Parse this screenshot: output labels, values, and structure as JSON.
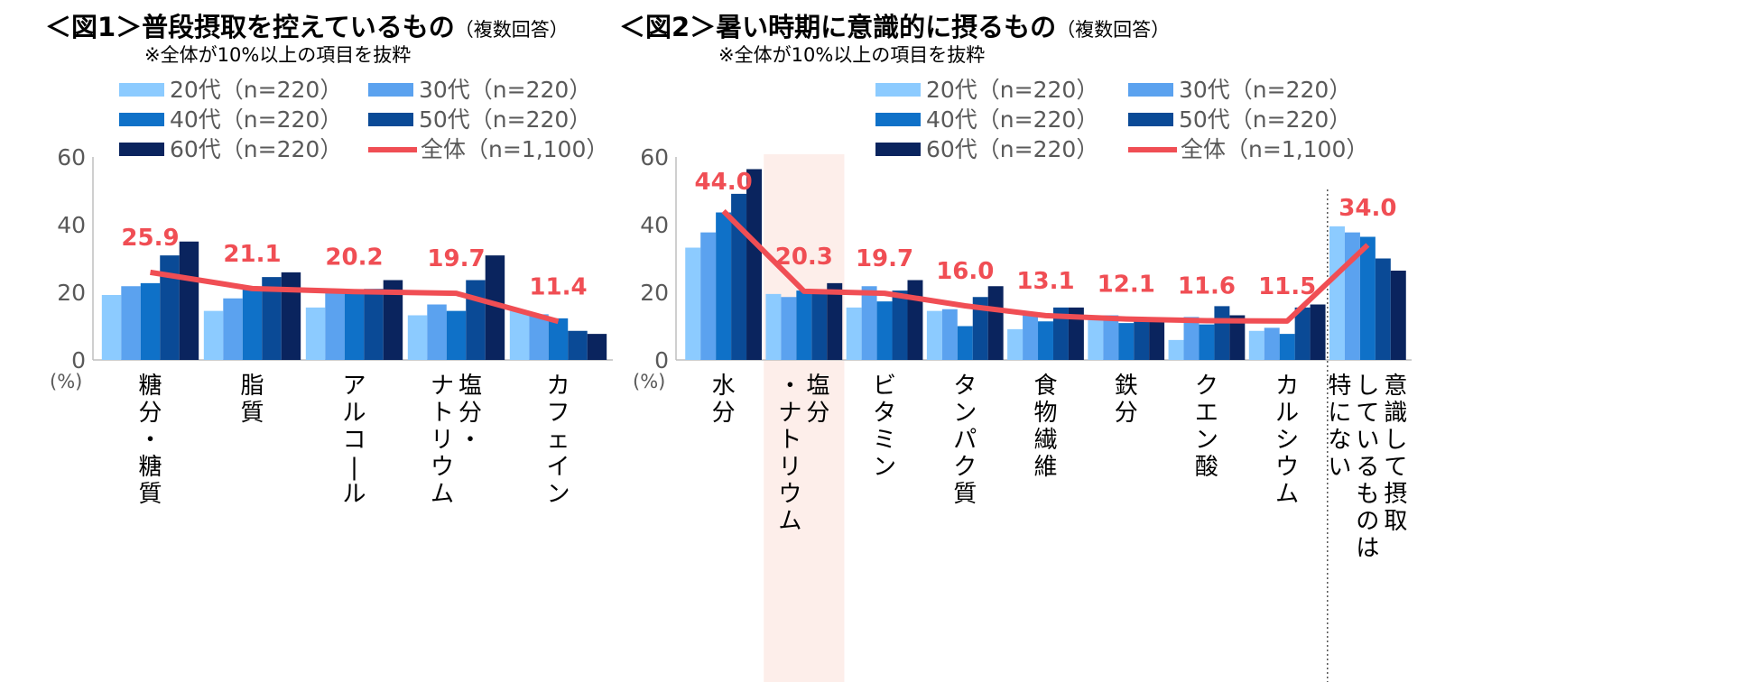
{
  "colors": {
    "series": [
      "#8ccbff",
      "#5ba2ef",
      "#0f71c8",
      "#0a4a96",
      "#0a245e"
    ],
    "total_line": "#f04e54",
    "label": "#f04e54",
    "axis_text": "#595959",
    "axis_line": "#bfbfbf",
    "highlight": "#fdeeea"
  },
  "chart_data": [
    {
      "type": "bar",
      "title_main": "＜図1＞普段摂取を控えているもの",
      "title_note": "（複数回答）",
      "subtitle": "※全体が10%以上の項目を抜粋",
      "ylabel": "(%)",
      "ylim": [
        0,
        60
      ],
      "yticks": [
        0,
        20,
        40,
        60
      ],
      "categories": [
        [
          "糖",
          "分",
          "・",
          "糖",
          "質"
        ],
        [
          "脂",
          "質"
        ],
        [
          "ア",
          "ル",
          "コ",
          "ー",
          "ル"
        ],
        [
          "塩",
          "分",
          "・",
          "ナ",
          "ト",
          "リ",
          "ウ",
          "ム"
        ],
        [
          "カ",
          "フ",
          "ェ",
          "イ",
          "ン"
        ]
      ],
      "category_columns": [
        [
          [
            "糖",
            "分",
            "・",
            "糖",
            "質"
          ]
        ],
        [
          [
            "脂",
            "質"
          ]
        ],
        [
          [
            "ア",
            "ル",
            "コ",
            "ー",
            "ル"
          ]
        ],
        [
          [
            "塩",
            "分",
            "・"
          ],
          [
            "ナ",
            "ト",
            "リ",
            "ウ",
            "ム"
          ]
        ],
        [
          [
            "カ",
            "フ",
            "ェ",
            "イ",
            "ン"
          ]
        ]
      ],
      "series": [
        {
          "name": "20代（n=220）",
          "values": [
            19.2,
            14.5,
            15.5,
            13.2,
            14.5
          ]
        },
        {
          "name": "30代（n=220）",
          "values": [
            21.8,
            18.2,
            20.5,
            16.4,
            13.5
          ]
        },
        {
          "name": "40代（n=220）",
          "values": [
            22.7,
            21.4,
            20.5,
            14.5,
            12.3
          ]
        },
        {
          "name": "50代（n=220）",
          "values": [
            30.9,
            24.5,
            21.0,
            23.6,
            8.6
          ]
        },
        {
          "name": "60代（n=220）",
          "values": [
            35.0,
            25.9,
            23.6,
            30.9,
            7.7
          ]
        }
      ],
      "total": {
        "name": "全体（n=1,100）",
        "values": [
          25.9,
          21.1,
          20.2,
          19.7,
          11.4
        ],
        "labels": [
          "25.9",
          "21.1",
          "20.2",
          "19.7",
          "11.4"
        ]
      }
    },
    {
      "type": "bar",
      "title_main": "＜図2＞暑い時期に意識的に摂るもの",
      "title_note": "（複数回答）",
      "subtitle": "※全体が10%以上の項目を抜粋",
      "ylabel": "(%)",
      "ylim": [
        0,
        60
      ],
      "yticks": [
        0,
        20,
        40,
        60
      ],
      "highlight_category": 1,
      "separator_before": 8,
      "categories": [
        [
          "水",
          "分"
        ],
        [
          "塩",
          "分",
          "・",
          "ナ",
          "ト",
          "リ",
          "ウ",
          "ム"
        ],
        [
          "ビ",
          "タ",
          "ミ",
          "ン"
        ],
        [
          "タ",
          "ン",
          "パ",
          "ク",
          "質"
        ],
        [
          "食",
          "物",
          "繊",
          "維"
        ],
        [
          "鉄",
          "分"
        ],
        [
          "ク",
          "エ",
          "ン",
          "酸"
        ],
        [
          "カ",
          "ル",
          "シ",
          "ウ",
          "ム"
        ],
        [
          "意",
          "識",
          "し",
          "て",
          "摂",
          "取",
          "し",
          "て",
          "い",
          "る",
          "も",
          "の",
          "は",
          "特",
          "に",
          "な",
          "い"
        ]
      ],
      "category_columns": [
        [
          [
            "水",
            "分"
          ]
        ],
        [
          [
            "塩",
            "分"
          ],
          [
            "・",
            "ナ",
            "ト",
            "リ",
            "ウ",
            "ム"
          ]
        ],
        [
          [
            "ビ",
            "タ",
            "ミ",
            "ン"
          ]
        ],
        [
          [
            "タ",
            "ン",
            "パ",
            "ク",
            "質"
          ]
        ],
        [
          [
            "食",
            "物",
            "繊",
            "維"
          ]
        ],
        [
          [
            "鉄",
            "分"
          ]
        ],
        [
          [
            "ク",
            "エ",
            "ン",
            "酸"
          ]
        ],
        [
          [
            "カ",
            "ル",
            "シ",
            "ウ",
            "ム"
          ]
        ],
        [
          [
            "意",
            "識",
            "し",
            "て",
            "摂",
            "取"
          ],
          [
            "し",
            "て",
            "い",
            "る",
            "も",
            "の",
            "は"
          ],
          [
            "特",
            "に",
            "な",
            "い"
          ]
        ]
      ],
      "series": [
        {
          "name": "20代（n=220）",
          "values": [
            33.2,
            19.5,
            15.5,
            14.5,
            9.1,
            13.2,
            5.9,
            8.6,
            39.5
          ]
        },
        {
          "name": "30代（n=220）",
          "values": [
            37.7,
            18.6,
            21.8,
            15.0,
            13.2,
            13.2,
            12.7,
            9.5,
            37.7
          ]
        },
        {
          "name": "40代（n=220）",
          "values": [
            43.6,
            20.5,
            17.3,
            10.0,
            11.4,
            10.9,
            10.5,
            7.7,
            36.4
          ]
        },
        {
          "name": "50代（n=220）",
          "values": [
            49.1,
            20.5,
            20.5,
            18.6,
            15.5,
            11.4,
            15.9,
            15.5,
            30.0
          ]
        },
        {
          "name": "60代（n=220）",
          "values": [
            56.4,
            22.7,
            23.6,
            21.8,
            15.5,
            11.4,
            13.2,
            16.4,
            26.4
          ]
        }
      ],
      "total": {
        "name": "全体（n=1,100）",
        "values": [
          44.0,
          20.3,
          19.7,
          16.0,
          13.1,
          12.1,
          11.6,
          11.5,
          34.0
        ],
        "labels": [
          "44.0",
          "20.3",
          "19.7",
          "16.0",
          "13.1",
          "12.1",
          "11.6",
          "11.5",
          "34.0"
        ]
      }
    }
  ]
}
